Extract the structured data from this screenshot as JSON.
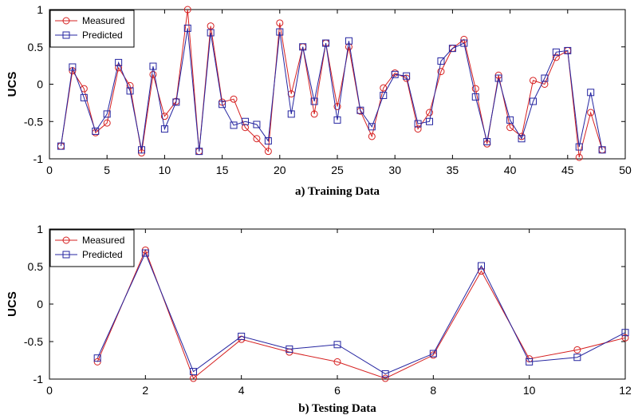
{
  "chart_data": [
    {
      "type": "line",
      "caption": "a) Training Data",
      "ylabel": "UCS",
      "xlabel": "",
      "xlim": [
        0,
        50
      ],
      "ylim": [
        -1,
        1
      ],
      "xticks": [
        0,
        5,
        10,
        15,
        20,
        25,
        30,
        35,
        40,
        45,
        50
      ],
      "yticks": [
        -1,
        -0.5,
        0,
        0.5,
        1
      ],
      "grid": false,
      "legend_position": "top-left",
      "x": [
        1,
        2,
        3,
        4,
        5,
        6,
        7,
        8,
        9,
        10,
        11,
        12,
        13,
        14,
        15,
        16,
        17,
        18,
        19,
        20,
        21,
        22,
        23,
        24,
        25,
        26,
        27,
        28,
        29,
        30,
        31,
        32,
        33,
        34,
        35,
        36,
        37,
        38,
        39,
        40,
        41,
        42,
        43,
        44,
        45,
        46,
        47,
        48
      ],
      "series": [
        {
          "name": "Measured",
          "color": "#d62020",
          "marker": "circle",
          "values": [
            -0.83,
            0.18,
            -0.06,
            -0.65,
            -0.52,
            0.22,
            -0.02,
            -0.92,
            0.13,
            -0.43,
            -0.23,
            1.0,
            -0.9,
            0.78,
            -0.24,
            -0.2,
            -0.58,
            -0.73,
            -0.9,
            0.82,
            -0.13,
            0.5,
            -0.4,
            0.55,
            -0.3,
            0.5,
            -0.36,
            -0.7,
            -0.05,
            0.15,
            0.08,
            -0.6,
            -0.38,
            0.17,
            0.48,
            0.6,
            -0.06,
            -0.8,
            0.12,
            -0.58,
            -0.7,
            0.05,
            0.0,
            0.36,
            0.45,
            -0.98,
            -0.38,
            -0.88
          ]
        },
        {
          "name": "Predicted",
          "color": "#2424a0",
          "marker": "square",
          "values": [
            -0.83,
            0.23,
            -0.18,
            -0.63,
            -0.4,
            0.29,
            -0.09,
            -0.88,
            0.24,
            -0.6,
            -0.24,
            0.75,
            -0.9,
            0.69,
            -0.27,
            -0.55,
            -0.5,
            -0.54,
            -0.76,
            0.7,
            -0.4,
            0.5,
            -0.23,
            0.55,
            -0.48,
            0.58,
            -0.35,
            -0.57,
            -0.15,
            0.13,
            0.11,
            -0.53,
            -0.5,
            0.31,
            0.48,
            0.55,
            -0.17,
            -0.77,
            0.08,
            -0.48,
            -0.73,
            -0.23,
            0.08,
            0.43,
            0.45,
            -0.84,
            -0.11,
            -0.88
          ]
        }
      ]
    },
    {
      "type": "line",
      "caption": "b) Testing Data",
      "ylabel": "UCS",
      "xlabel": "",
      "xlim": [
        0,
        12
      ],
      "ylim": [
        -1,
        1
      ],
      "xticks": [
        0,
        2,
        4,
        6,
        8,
        10,
        12
      ],
      "yticks": [
        -1,
        -0.5,
        0,
        0.5,
        1
      ],
      "grid": false,
      "legend_position": "top-left",
      "x": [
        1,
        2,
        3,
        4,
        5,
        6,
        7,
        8,
        9,
        10,
        11,
        12
      ],
      "series": [
        {
          "name": "Measured",
          "color": "#d62020",
          "marker": "circle",
          "values": [
            -0.77,
            0.72,
            -0.99,
            -0.47,
            -0.64,
            -0.77,
            -0.99,
            -0.68,
            0.44,
            -0.73,
            -0.61,
            -0.45
          ]
        },
        {
          "name": "Predicted",
          "color": "#2424a0",
          "marker": "square",
          "values": [
            -0.72,
            0.68,
            -0.9,
            -0.43,
            -0.6,
            -0.54,
            -0.93,
            -0.66,
            0.51,
            -0.77,
            -0.71,
            -0.38
          ]
        }
      ]
    }
  ]
}
